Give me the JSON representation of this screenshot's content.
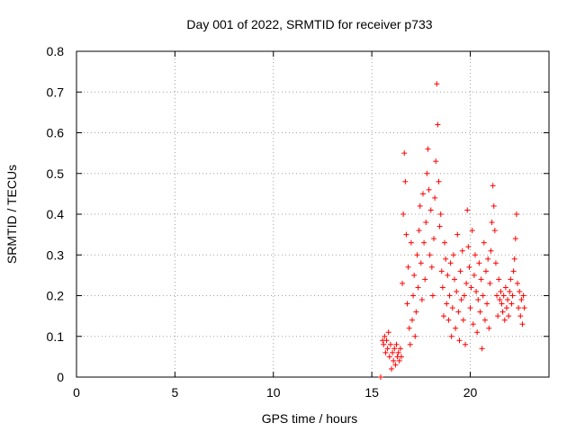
{
  "chart_data": {
    "type": "scatter",
    "title": "Day 001 of 2022, SRMTID for receiver p733",
    "xlabel": "GPS time / hours",
    "ylabel": "SRMTID / TECUs",
    "xlim": [
      0,
      24
    ],
    "ylim": [
      0,
      0.8
    ],
    "xticks": [
      0,
      5,
      10,
      15,
      20
    ],
    "xtick_labels": [
      "0",
      "5",
      "10",
      "15",
      "20"
    ],
    "yticks": [
      0,
      0.1,
      0.2,
      0.3,
      0.4,
      0.5,
      0.6,
      0.7,
      0.8
    ],
    "ytick_labels": [
      "0",
      "0.1",
      "0.2",
      "0.3",
      "0.4",
      "0.5",
      "0.6",
      "0.7",
      "0.8"
    ],
    "grid": true,
    "marker": "+",
    "series": [
      {
        "name": "SRMTID",
        "color": "#ff0000",
        "x": [
          15.45,
          15.55,
          15.6,
          15.65,
          15.7,
          15.75,
          15.8,
          15.85,
          15.9,
          15.95,
          16.0,
          16.05,
          16.1,
          16.15,
          16.2,
          16.25,
          16.3,
          16.35,
          16.4,
          16.45,
          16.5,
          16.55,
          16.6,
          16.65,
          16.7,
          16.75,
          16.8,
          16.85,
          16.9,
          16.95,
          17.0,
          17.05,
          17.1,
          17.15,
          17.2,
          17.25,
          17.3,
          17.35,
          17.4,
          17.45,
          17.5,
          17.55,
          17.6,
          17.65,
          17.7,
          17.75,
          17.8,
          17.85,
          17.9,
          17.95,
          18.0,
          18.05,
          18.1,
          18.15,
          18.2,
          18.25,
          18.3,
          18.35,
          18.4,
          18.45,
          18.5,
          18.55,
          18.6,
          18.65,
          18.7,
          18.75,
          18.8,
          18.85,
          18.9,
          18.95,
          19.0,
          19.05,
          19.1,
          19.15,
          19.2,
          19.25,
          19.3,
          19.35,
          19.4,
          19.45,
          19.5,
          19.55,
          19.6,
          19.65,
          19.7,
          19.75,
          19.8,
          19.85,
          19.9,
          19.95,
          20.0,
          20.05,
          20.1,
          20.15,
          20.2,
          20.25,
          20.3,
          20.35,
          20.4,
          20.45,
          20.5,
          20.55,
          20.6,
          20.65,
          20.7,
          20.75,
          20.8,
          20.85,
          20.9,
          20.95,
          21.0,
          21.05,
          21.1,
          21.15,
          21.2,
          21.25,
          21.3,
          21.35,
          21.4,
          21.45,
          21.5,
          21.55,
          21.6,
          21.65,
          21.7,
          21.75,
          21.8,
          21.85,
          21.9,
          21.95,
          22.0,
          22.05,
          22.1,
          22.15,
          22.2,
          22.25,
          22.3,
          22.35,
          22.4,
          22.45,
          22.5,
          22.55,
          22.6,
          22.65,
          22.7,
          22.75
        ],
        "y": [
          0.0,
          0.09,
          0.08,
          0.1,
          0.06,
          0.09,
          0.07,
          0.11,
          0.05,
          0.08,
          0.02,
          0.06,
          0.04,
          0.07,
          0.03,
          0.08,
          0.05,
          0.06,
          0.04,
          0.07,
          0.05,
          0.23,
          0.4,
          0.55,
          0.48,
          0.35,
          0.18,
          0.27,
          0.12,
          0.08,
          0.33,
          0.14,
          0.2,
          0.25,
          0.1,
          0.16,
          0.3,
          0.22,
          0.36,
          0.42,
          0.28,
          0.19,
          0.45,
          0.33,
          0.24,
          0.38,
          0.5,
          0.56,
          0.46,
          0.3,
          0.41,
          0.27,
          0.2,
          0.34,
          0.44,
          0.53,
          0.72,
          0.62,
          0.48,
          0.37,
          0.4,
          0.26,
          0.22,
          0.15,
          0.33,
          0.29,
          0.18,
          0.25,
          0.14,
          0.2,
          0.28,
          0.1,
          0.17,
          0.3,
          0.24,
          0.12,
          0.21,
          0.35,
          0.16,
          0.09,
          0.26,
          0.19,
          0.31,
          0.14,
          0.2,
          0.08,
          0.23,
          0.41,
          0.32,
          0.27,
          0.17,
          0.22,
          0.36,
          0.13,
          0.25,
          0.3,
          0.21,
          0.11,
          0.19,
          0.28,
          0.16,
          0.24,
          0.07,
          0.2,
          0.33,
          0.14,
          0.26,
          0.18,
          0.29,
          0.12,
          0.23,
          0.31,
          0.38,
          0.47,
          0.42,
          0.36,
          0.28,
          0.2,
          0.15,
          0.24,
          0.19,
          0.21,
          0.18,
          0.16,
          0.2,
          0.14,
          0.22,
          0.17,
          0.19,
          0.15,
          0.21,
          0.24,
          0.18,
          0.2,
          0.26,
          0.29,
          0.34,
          0.4,
          0.23,
          0.17,
          0.21,
          0.15,
          0.19,
          0.13,
          0.2,
          0.17
        ]
      }
    ]
  }
}
